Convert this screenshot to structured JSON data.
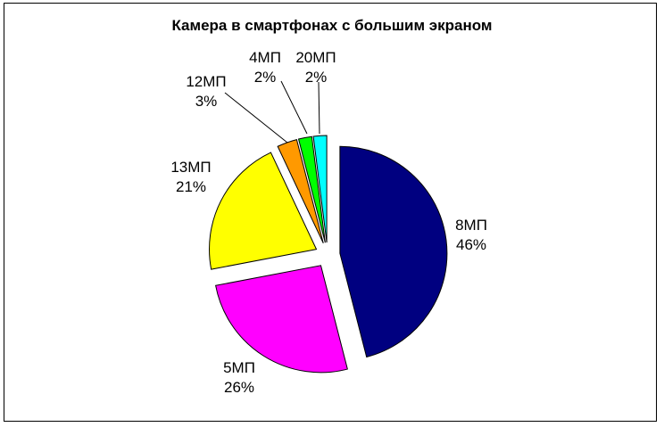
{
  "chart_data": {
    "type": "pie",
    "title": "Камера в смартфонах с большим экраном",
    "slices": [
      {
        "label": "8МП",
        "value": 46,
        "pct": "46%",
        "color": "#000080"
      },
      {
        "label": "5МП",
        "value": 26,
        "pct": "26%",
        "color": "#FF00FF"
      },
      {
        "label": "13МП",
        "value": 21,
        "pct": "21%",
        "color": "#FFFF00"
      },
      {
        "label": "12МП",
        "value": 3,
        "pct": "3%",
        "color": "#FF9900"
      },
      {
        "label": "4МП",
        "value": 2,
        "pct": "2%",
        "color": "#00FF00"
      },
      {
        "label": "20МП",
        "value": 2,
        "pct": "2%",
        "color": "#00FFFF"
      }
    ],
    "legend": "none",
    "exploded": true
  }
}
